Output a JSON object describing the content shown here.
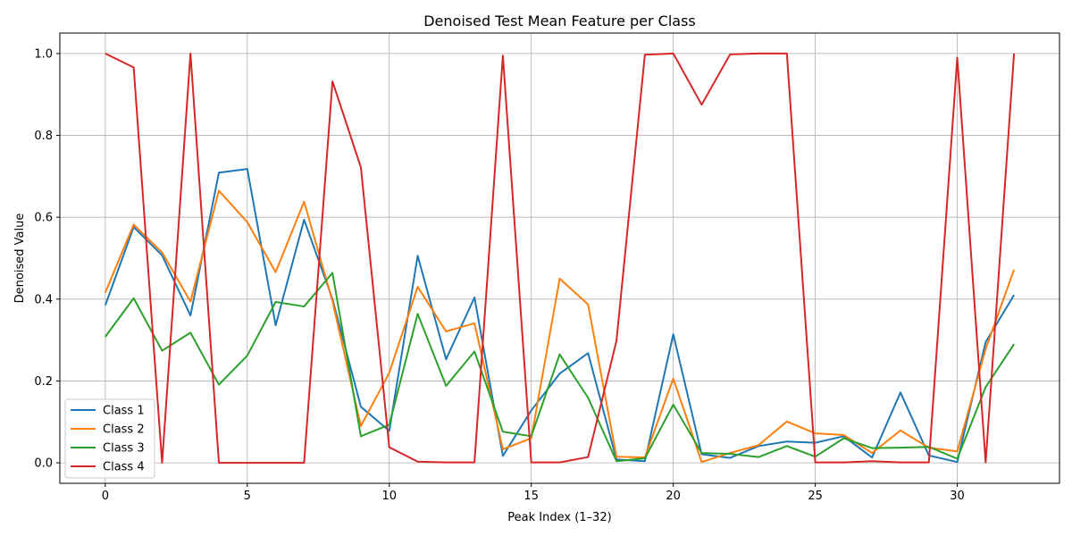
{
  "chart_data": {
    "type": "line",
    "title": "Denoised Test Mean Feature per Class",
    "xlabel": "Peak Index (1–32)",
    "ylabel": "Denoised Value",
    "xlim": [
      -1.6,
      33.6
    ],
    "ylim": [
      -0.05,
      1.05
    ],
    "xticks": [
      0,
      5,
      10,
      15,
      20,
      25,
      30
    ],
    "yticks": [
      0.0,
      0.2,
      0.4,
      0.6,
      0.8,
      1.0
    ],
    "grid": true,
    "legend_position": "lower-left",
    "x": [
      0,
      1,
      2,
      3,
      4,
      5,
      6,
      7,
      8,
      9,
      10,
      11,
      12,
      13,
      14,
      15,
      16,
      17,
      18,
      19,
      20,
      21,
      22,
      23,
      24,
      25,
      26,
      27,
      28,
      29,
      30,
      31,
      32
    ],
    "series": [
      {
        "name": "Class 1",
        "color": "#1f77b4",
        "values": [
          0.385,
          0.576,
          0.507,
          0.36,
          0.709,
          0.718,
          0.336,
          0.594,
          0.4,
          0.137,
          0.078,
          0.506,
          0.253,
          0.404,
          0.017,
          0.128,
          0.218,
          0.268,
          0.008,
          0.004,
          0.314,
          0.021,
          0.012,
          0.041,
          0.052,
          0.049,
          0.065,
          0.013,
          0.172,
          0.018,
          0.002,
          0.295,
          0.41
        ]
      },
      {
        "name": "Class 2",
        "color": "#ff7f0e",
        "values": [
          0.416,
          0.582,
          0.514,
          0.394,
          0.665,
          0.588,
          0.466,
          0.638,
          0.395,
          0.09,
          0.22,
          0.43,
          0.321,
          0.341,
          0.033,
          0.06,
          0.45,
          0.387,
          0.015,
          0.013,
          0.206,
          0.002,
          0.024,
          0.043,
          0.101,
          0.072,
          0.068,
          0.024,
          0.079,
          0.037,
          0.028,
          0.278,
          0.472
        ]
      },
      {
        "name": "Class 3",
        "color": "#2ca02c",
        "values": [
          0.308,
          0.402,
          0.274,
          0.318,
          0.191,
          0.262,
          0.393,
          0.382,
          0.464,
          0.065,
          0.093,
          0.364,
          0.188,
          0.272,
          0.076,
          0.065,
          0.265,
          0.159,
          0.004,
          0.011,
          0.142,
          0.024,
          0.022,
          0.014,
          0.041,
          0.015,
          0.06,
          0.036,
          0.037,
          0.039,
          0.01,
          0.185,
          0.29
        ]
      },
      {
        "name": "Class 4",
        "color": "#d62728",
        "values": [
          1.0,
          0.966,
          0.0,
          1.0,
          0.0,
          0.0,
          0.0,
          0.0,
          0.932,
          0.722,
          0.038,
          0.003,
          0.001,
          0.001,
          0.995,
          0.001,
          0.001,
          0.014,
          0.298,
          0.997,
          1.0,
          0.875,
          0.998,
          1.0,
          1.0,
          0.001,
          0.001,
          0.004,
          0.001,
          0.001,
          0.99,
          0.001,
          1.0
        ]
      }
    ]
  }
}
